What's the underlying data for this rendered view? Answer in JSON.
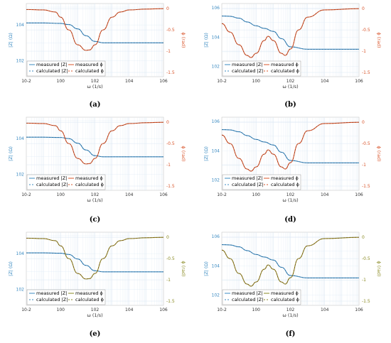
{
  "style": {
    "magnitude_color": "#3b8bc2",
    "phase_color_abcd": "#d9542a",
    "phase_color_ef": "#8a8a22",
    "grid_color": "#dbe7f3"
  },
  "legend": {
    "measured_mag": "measured |Z|",
    "calculated_mag": "calculated |Z|",
    "measured_phase": "measured ϕ",
    "calculated_phase": "calculated ϕ"
  },
  "chart_data": [
    {
      "id": "a",
      "type": "line",
      "caption": "(a)",
      "xlabel": "ω (1/s)",
      "ylabel_left": "|Z| (Ω)",
      "ylabel_right": "ϕ (rad)",
      "x_scale": "log",
      "xlim": [
        0.01,
        1000000
      ],
      "x_ticks": [
        "10-2",
        "100",
        "102",
        "104",
        "106"
      ],
      "y_left_scale": "log",
      "y_left_ticks": [
        "102",
        "104"
      ],
      "y_right_lim": [
        -1.5,
        0
      ],
      "y_right_ticks": [
        "0",
        "-0.5",
        "-1",
        "-1.5"
      ],
      "legend_position": "bottom-left",
      "grid": true,
      "series": [
        {
          "name": "measured |Z|",
          "axis": "left",
          "x": [
            0.01,
            0.1,
            1,
            3,
            10,
            30,
            100,
            300,
            1000,
            10000,
            1000000
          ],
          "y": [
            13000,
            13000,
            12200,
            10500,
            6000,
            2500,
            1200,
            1000,
            1000,
            1000,
            1000
          ]
        },
        {
          "name": "measured ϕ",
          "axis": "right",
          "x": [
            0.01,
            0.1,
            0.5,
            1,
            3,
            10,
            30,
            50,
            100,
            300,
            1000,
            3000,
            10000,
            100000,
            1000000
          ],
          "y": [
            -0.02,
            -0.03,
            -0.08,
            -0.2,
            -0.5,
            -0.85,
            -0.98,
            -0.97,
            -0.85,
            -0.5,
            -0.2,
            -0.08,
            -0.03,
            -0.01,
            0
          ]
        }
      ]
    },
    {
      "id": "b",
      "type": "line",
      "caption": "(b)",
      "xlabel": "ω (1/s)",
      "ylabel_left": "|Z| (Ω)",
      "ylabel_right": "ϕ (rad)",
      "x_scale": "log",
      "xlim": [
        0.01,
        1000000
      ],
      "x_ticks": [
        "10-2",
        "100",
        "102",
        "104",
        "106"
      ],
      "y_left_scale": "log",
      "y_left_ticks": [
        "102",
        "104",
        "106"
      ],
      "y_right_lim": [
        -1.5,
        0
      ],
      "y_right_ticks": [
        "0",
        "-0.5",
        "-1",
        "-1.5"
      ],
      "legend_position": "bottom-left",
      "grid": true,
      "series": [
        {
          "name": "measured |Z|",
          "axis": "left",
          "x": [
            0.01,
            0.03,
            0.1,
            0.3,
            1,
            3,
            10,
            30,
            100,
            1000,
            10000,
            1000000
          ],
          "y": [
            280000,
            270000,
            200000,
            110000,
            60000,
            40000,
            25000,
            8000,
            2200,
            1500,
            1500,
            1500
          ]
        },
        {
          "name": "measured ϕ",
          "axis": "right",
          "x": [
            0.01,
            0.03,
            0.1,
            0.3,
            0.5,
            1,
            3,
            5,
            10,
            30,
            50,
            100,
            300,
            1000,
            10000,
            1000000
          ],
          "y": [
            -0.35,
            -0.55,
            -0.85,
            -1.1,
            -1.15,
            -1.05,
            -0.75,
            -0.65,
            -0.75,
            -1.05,
            -1.1,
            -0.95,
            -0.5,
            -0.2,
            -0.03,
            0
          ]
        }
      ]
    },
    {
      "id": "c",
      "type": "line",
      "caption": "(c)",
      "xlabel": "ω (1/s)",
      "ylabel_left": "|Z| (Ω)",
      "ylabel_right": "ϕ (rad)",
      "x_scale": "log",
      "xlim": [
        0.01,
        1000000
      ],
      "x_ticks": [
        "10-2",
        "100",
        "102",
        "104",
        "106"
      ],
      "y_left_scale": "log",
      "y_left_ticks": [
        "102",
        "104"
      ],
      "y_right_lim": [
        -1.5,
        0
      ],
      "y_right_ticks": [
        "0",
        "-0.5",
        "-1",
        "-1.5"
      ],
      "legend_position": "bottom-left",
      "grid": true,
      "series": [
        {
          "name": "measured |Z|",
          "axis": "left",
          "x": [
            0.01,
            0.1,
            1,
            3,
            10,
            30,
            100,
            300,
            1000,
            10000,
            1000000
          ],
          "y": [
            12000,
            12000,
            11500,
            10000,
            5500,
            2300,
            1100,
            950,
            950,
            950,
            950
          ]
        },
        {
          "name": "measured ϕ",
          "axis": "right",
          "x": [
            0.01,
            0.1,
            0.5,
            1,
            3,
            10,
            30,
            50,
            100,
            300,
            1000,
            3000,
            10000,
            100000,
            1000000
          ],
          "y": [
            -0.02,
            -0.03,
            -0.08,
            -0.2,
            -0.5,
            -0.85,
            -0.98,
            -0.97,
            -0.85,
            -0.5,
            -0.2,
            -0.08,
            -0.03,
            -0.01,
            0
          ]
        }
      ]
    },
    {
      "id": "d",
      "type": "line",
      "caption": "(d)",
      "xlabel": "ω (1/s)",
      "ylabel_left": "|Z| (Ω)",
      "ylabel_right": "ϕ (rad)",
      "x_scale": "log",
      "xlim": [
        0.01,
        1000000
      ],
      "x_ticks": [
        "10-2",
        "100",
        "102",
        "104",
        "106"
      ],
      "y_left_scale": "log",
      "y_left_ticks": [
        "102",
        "104",
        "106"
      ],
      "y_right_lim": [
        -1.5,
        0
      ],
      "y_right_ticks": [
        "0",
        "-0.5",
        "-1",
        "-1.5"
      ],
      "legend_position": "bottom-left",
      "grid": true,
      "series": [
        {
          "name": "measured |Z|",
          "axis": "left",
          "x": [
            0.01,
            0.03,
            0.1,
            0.3,
            1,
            3,
            10,
            30,
            100,
            1000,
            10000,
            1000000
          ],
          "y": [
            280000,
            270000,
            200000,
            110000,
            60000,
            40000,
            25000,
            8000,
            2200,
            1500,
            1500,
            1500
          ]
        },
        {
          "name": "measured ϕ",
          "axis": "right",
          "x": [
            0.01,
            0.03,
            0.1,
            0.3,
            0.5,
            1,
            3,
            5,
            10,
            30,
            50,
            100,
            300,
            1000,
            10000,
            1000000
          ],
          "y": [
            -0.3,
            -0.5,
            -0.85,
            -1.1,
            -1.15,
            -1.05,
            -0.75,
            -0.65,
            -0.75,
            -1.05,
            -1.1,
            -0.95,
            -0.5,
            -0.2,
            -0.03,
            0
          ]
        }
      ]
    },
    {
      "id": "e",
      "type": "line",
      "caption": "(e)",
      "xlabel": "ω (1/s)",
      "ylabel_left": "|Z| (Ω)",
      "ylabel_right": "ϕ (rad)",
      "x_scale": "log",
      "xlim": [
        0.01,
        1000000
      ],
      "x_ticks": [
        "10-2",
        "100",
        "102",
        "104",
        "106"
      ],
      "y_left_scale": "log",
      "y_left_ticks": [
        "102",
        "104"
      ],
      "y_right_lim": [
        -1.5,
        0
      ],
      "y_right_ticks": [
        "0",
        "-0.5",
        "-1",
        "-1.5"
      ],
      "legend_position": "bottom-left",
      "grid": true,
      "series": [
        {
          "name": "measured |Z|",
          "axis": "left",
          "x": [
            0.01,
            0.1,
            1,
            3,
            10,
            30,
            100,
            300,
            1000,
            10000,
            1000000
          ],
          "y": [
            11000,
            11000,
            10500,
            9000,
            5000,
            2200,
            1100,
            950,
            950,
            950,
            950
          ]
        },
        {
          "name": "measured ϕ",
          "axis": "right",
          "x": [
            0.01,
            0.1,
            0.5,
            1,
            3,
            10,
            30,
            50,
            100,
            300,
            1000,
            3000,
            10000,
            100000,
            1000000
          ],
          "y": [
            -0.02,
            -0.03,
            -0.08,
            -0.2,
            -0.5,
            -0.85,
            -0.98,
            -0.97,
            -0.85,
            -0.5,
            -0.2,
            -0.08,
            -0.03,
            -0.01,
            0
          ]
        }
      ]
    },
    {
      "id": "f",
      "type": "line",
      "caption": "(f)",
      "xlabel": "ω (1/s)",
      "ylabel_left": "|Z| (Ω)",
      "ylabel_right": "ϕ (rad)",
      "x_scale": "log",
      "xlim": [
        0.01,
        1000000
      ],
      "x_ticks": [
        "10-2",
        "100",
        "102",
        "104",
        "106"
      ],
      "y_left_scale": "log",
      "y_left_ticks": [
        "102",
        "104",
        "106"
      ],
      "y_right_lim": [
        -1.5,
        0
      ],
      "y_right_ticks": [
        "0",
        "-0.5",
        "-1",
        "-1.5"
      ],
      "legend_position": "bottom-left",
      "grid": true,
      "series": [
        {
          "name": "measured |Z|",
          "axis": "left",
          "x": [
            0.01,
            0.03,
            0.1,
            0.3,
            1,
            3,
            10,
            30,
            100,
            1000,
            10000,
            1000000
          ],
          "y": [
            280000,
            270000,
            200000,
            110000,
            60000,
            40000,
            25000,
            8000,
            2200,
            1500,
            1500,
            1500
          ]
        },
        {
          "name": "measured ϕ",
          "axis": "right",
          "x": [
            0.01,
            0.03,
            0.1,
            0.3,
            0.5,
            1,
            3,
            5,
            10,
            30,
            50,
            100,
            300,
            1000,
            10000,
            1000000
          ],
          "y": [
            -0.3,
            -0.5,
            -0.85,
            -1.1,
            -1.15,
            -1.05,
            -0.75,
            -0.65,
            -0.75,
            -1.05,
            -1.1,
            -0.95,
            -0.5,
            -0.2,
            -0.03,
            0
          ]
        }
      ]
    }
  ]
}
